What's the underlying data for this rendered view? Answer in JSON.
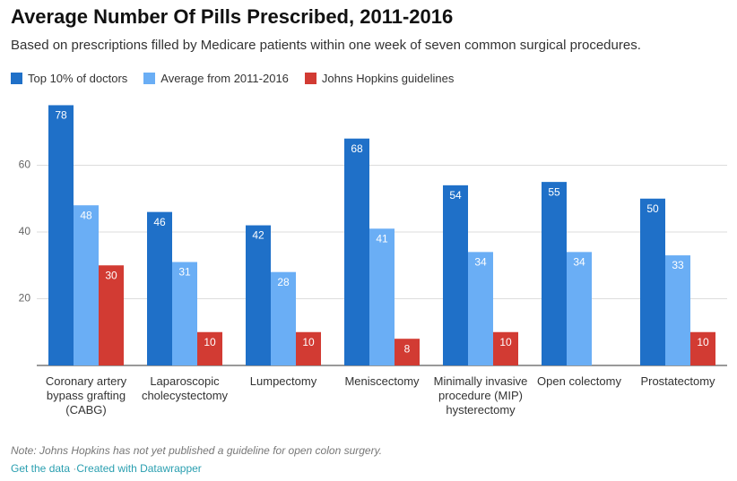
{
  "chart_data": {
    "type": "bar",
    "title": "Average Number Of Pills Prescribed, 2011-2016",
    "subtitle": "Based on prescriptions filled by Medicare patients within one week of seven common surgical procedures.",
    "categories": [
      "Coronary artery bypass grafting (CABG)",
      "Laparoscopic cholecystectomy",
      "Lumpectomy",
      "Meniscectomy",
      "Minimally invasive procedure (MIP) hysterectomy",
      "Open colectomy",
      "Prostatectomy"
    ],
    "series": [
      {
        "name": "Top 10% of doctors",
        "color": "#1f70c8",
        "values": [
          78,
          46,
          42,
          68,
          54,
          55,
          50
        ]
      },
      {
        "name": "Average from 2011-2016",
        "color": "#6aaef5",
        "values": [
          48,
          31,
          28,
          41,
          34,
          34,
          33
        ]
      },
      {
        "name": "Johns Hopkins guidelines",
        "color": "#d23b33",
        "values": [
          30,
          10,
          10,
          8,
          10,
          null,
          10
        ]
      }
    ],
    "ylim": [
      0,
      80
    ],
    "yticks": [
      20,
      40,
      60
    ],
    "grid": true,
    "legend": "top",
    "note": "Note: Johns Hopkins has not yet published a guideline for open colon surgery.",
    "links": [
      "Get the data",
      "Created with Datawrapper"
    ]
  }
}
